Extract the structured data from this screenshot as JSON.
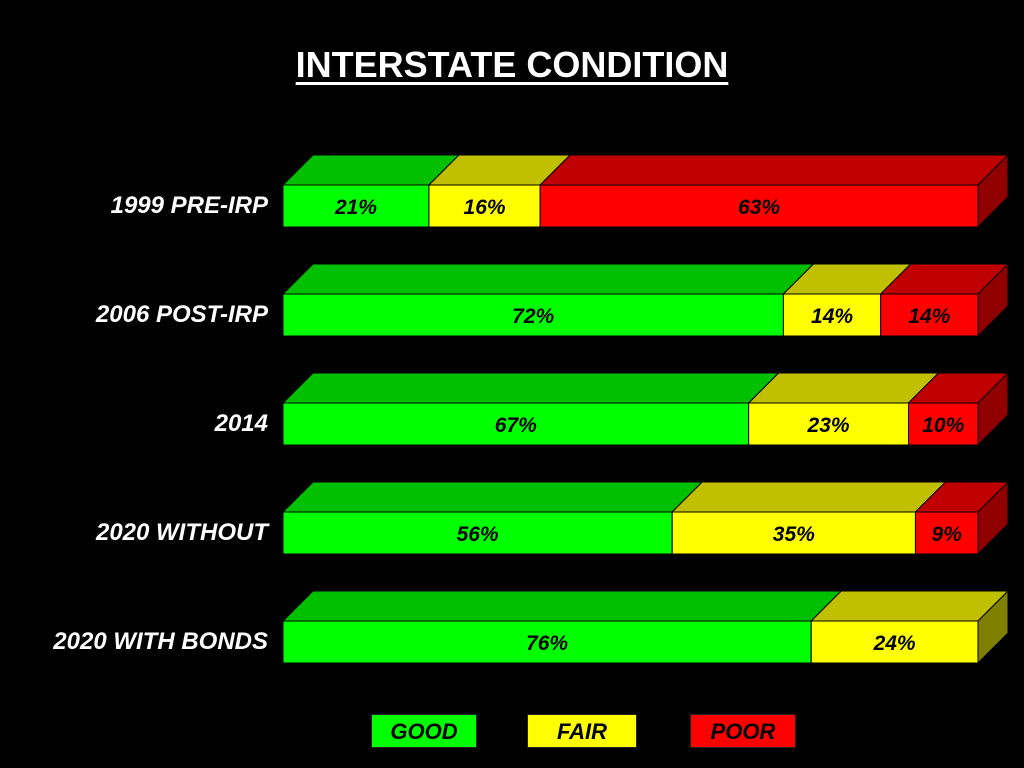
{
  "chart_data": {
    "type": "bar",
    "orientation": "horizontal",
    "stacked": true,
    "percent_stacked": true,
    "three_d": true,
    "title": "INTERSTATE CONDITION",
    "categories": [
      "1999 PRE-IRP",
      "2006 POST-IRP",
      "2014",
      "2020 WITHOUT",
      "2020 WITH BONDS"
    ],
    "series": [
      {
        "name": "GOOD",
        "color": "#00ff00",
        "values": [
          21,
          72,
          67,
          56,
          76
        ],
        "labels": [
          "21%",
          "72%",
          "67%",
          "56%",
          "76%"
        ]
      },
      {
        "name": "FAIR",
        "color": "#ffff00",
        "values": [
          16,
          14,
          23,
          35,
          24
        ],
        "labels": [
          "16%",
          "14%",
          "23%",
          "35%",
          "24%"
        ]
      },
      {
        "name": "POOR",
        "color": "#ff0000",
        "values": [
          63,
          14,
          10,
          9,
          0
        ],
        "labels": [
          "63%",
          "14%",
          "10%",
          "9%",
          ""
        ]
      }
    ],
    "xlim": [
      0,
      100
    ],
    "grid": false,
    "legend_position": "bottom",
    "background": "#000000"
  }
}
